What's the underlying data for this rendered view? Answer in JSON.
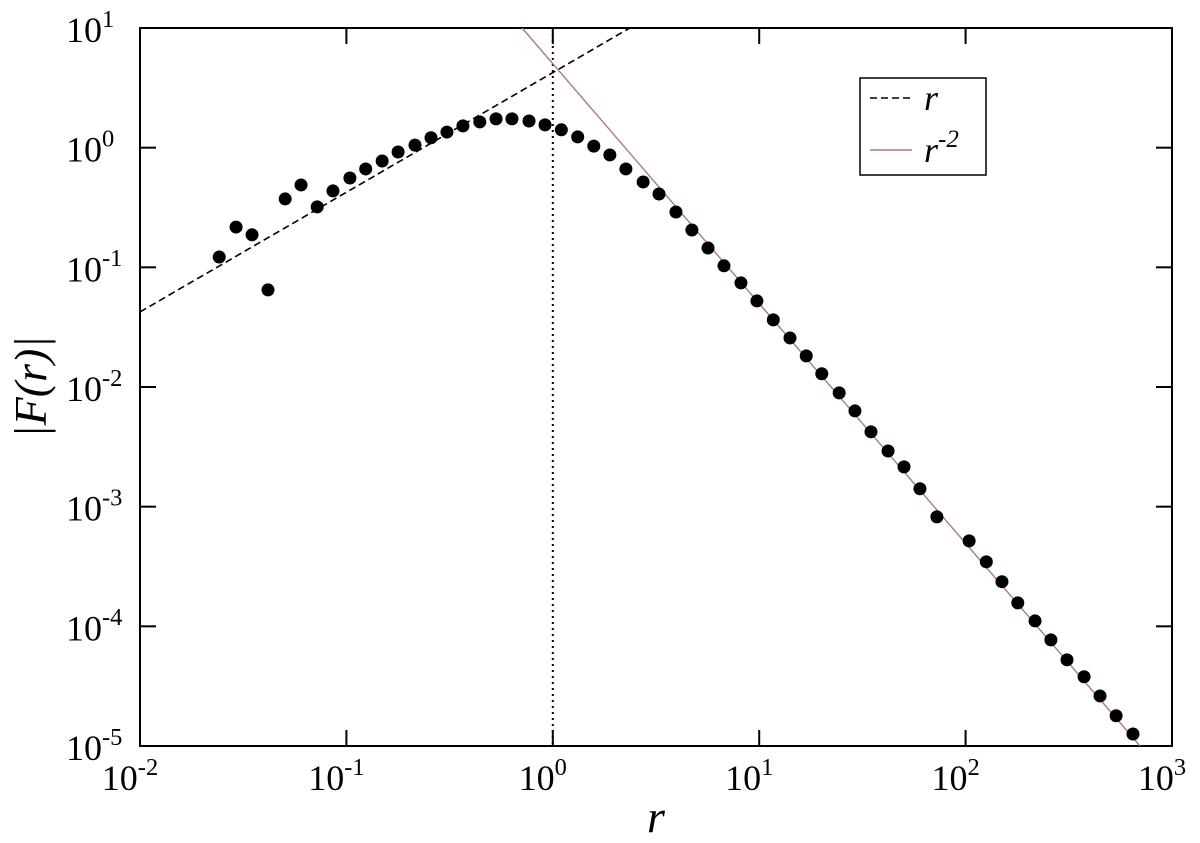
{
  "chart_data": {
    "type": "scatter",
    "x_label": "r",
    "y_label": "|F(r)|",
    "xscale": "log",
    "yscale": "log",
    "xlim": [
      0.01,
      1000
    ],
    "ylim": [
      1e-05,
      10
    ],
    "xticks": [
      {
        "value": 0.01,
        "label": "10",
        "exponent": "-2"
      },
      {
        "value": 0.1,
        "label": "10",
        "exponent": "-1"
      },
      {
        "value": 1,
        "label": "10",
        "exponent": "0"
      },
      {
        "value": 10,
        "label": "10",
        "exponent": "1"
      },
      {
        "value": 100,
        "label": "10",
        "exponent": "2"
      },
      {
        "value": 1000,
        "label": "10",
        "exponent": "3"
      }
    ],
    "yticks": [
      {
        "value": 1e-05,
        "label": "10",
        "exponent": "-5"
      },
      {
        "value": 0.0001,
        "label": "10",
        "exponent": "-4"
      },
      {
        "value": 0.001,
        "label": "10",
        "exponent": "-3"
      },
      {
        "value": 0.01,
        "label": "10",
        "exponent": "-2"
      },
      {
        "value": 0.1,
        "label": "10",
        "exponent": "-1"
      },
      {
        "value": 1,
        "label": "10",
        "exponent": "0"
      },
      {
        "value": 10,
        "label": "10",
        "exponent": "1"
      }
    ],
    "color": "#000000",
    "x": [
      0.0242,
      0.0292,
      0.0349,
      0.0417,
      0.0505,
      0.0603,
      0.0722,
      0.0861,
      0.104,
      0.124,
      0.149,
      0.178,
      0.215,
      0.257,
      0.307,
      0.367,
      0.443,
      0.531,
      0.634,
      0.767,
      0.917,
      1.1,
      1.32,
      1.58,
      1.89,
      2.26,
      2.74,
      3.27,
      3.95,
      4.72,
      5.65,
      6.75,
      8.16,
      9.75,
      11.7,
      14.1,
      16.9,
      20.1,
      24.4,
      29.1,
      34.8,
      42.1,
      50.3,
      60.1,
      72.6,
      104,
      126,
      150,
      179,
      217,
      259,
      310,
      375,
      448,
      536,
      647
    ],
    "values": [
      0.122,
      0.217,
      0.187,
      0.0648,
      0.373,
      0.488,
      0.32,
      0.435,
      0.558,
      0.664,
      0.774,
      0.92,
      1.05,
      1.21,
      1.35,
      1.52,
      1.64,
      1.74,
      1.74,
      1.67,
      1.55,
      1.41,
      1.23,
      1.03,
      0.869,
      0.664,
      0.517,
      0.41,
      0.29,
      0.205,
      0.145,
      0.103,
      0.0741,
      0.0524,
      0.0364,
      0.0257,
      0.0182,
      0.0129,
      0.00893,
      0.00631,
      0.00422,
      0.00292,
      0.00215,
      0.00141,
      0.000822,
      0.000518,
      0.000346,
      0.000236,
      0.000157,
      0.000111,
      7.71e-05,
      5.25e-05,
      3.79e-05,
      2.62e-05,
      1.79e-05,
      1.26e-05
    ],
    "reference_lines": [
      {
        "name": "r",
        "color": "#000000",
        "dashed": true,
        "x": [
          0.01,
          2.36
        ],
        "values": [
          0.0424,
          10
        ]
      },
      {
        "name": "r",
        "exponent": "-2",
        "color": "#b07a7a",
        "dashed": false,
        "x": [
          0.71,
          700
        ],
        "values": [
          10,
          1e-05
        ]
      }
    ],
    "vline": 1,
    "legend": "top-right"
  }
}
